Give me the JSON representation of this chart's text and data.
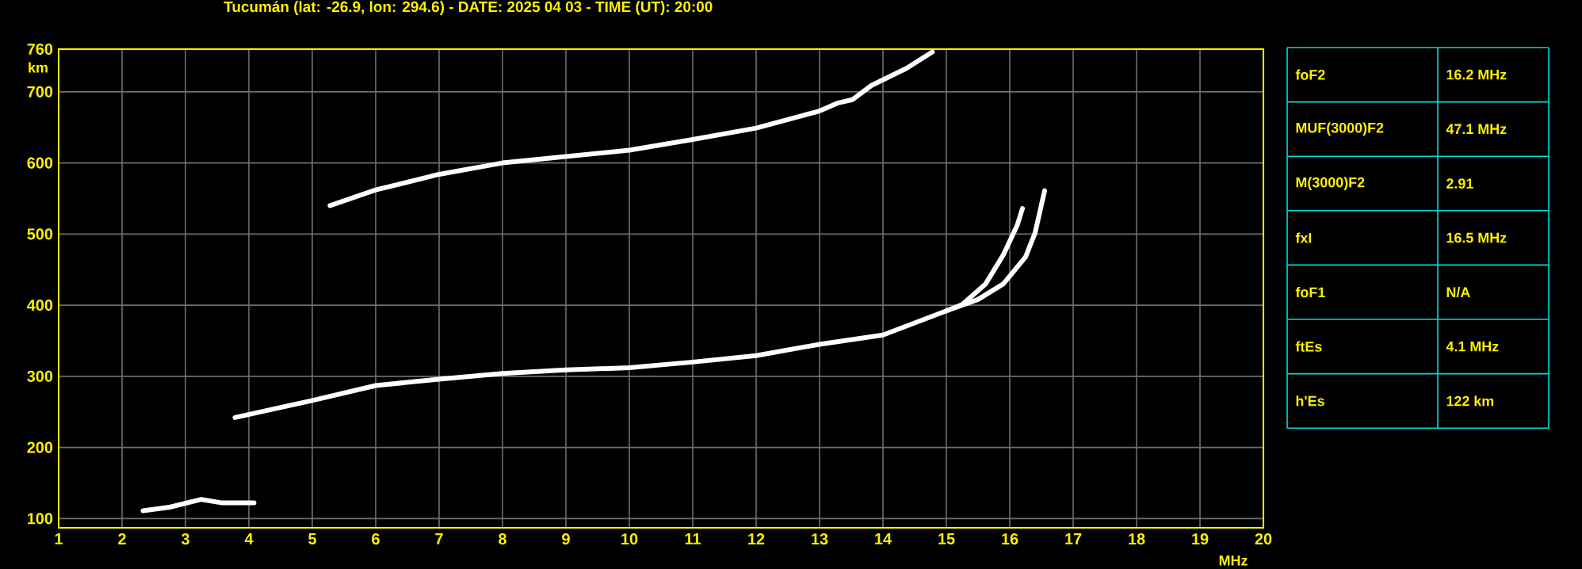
{
  "chart_data": [
    {
      "type": "line",
      "title": "Tucumán (lat: -26.9, lon: 294.6) - DATE: 2025 04 03 - TIME (UT): 20:00",
      "xlabel": "MHz",
      "ylabel": "km",
      "xlim": [
        1,
        20
      ],
      "ylim": [
        87,
        760
      ],
      "xticks": [
        1,
        2,
        3,
        4,
        5,
        6,
        7,
        8,
        9,
        10,
        11,
        12,
        13,
        14,
        15,
        16,
        17,
        18,
        19,
        20
      ],
      "yticks": [
        100,
        200,
        300,
        400,
        500,
        600,
        700,
        760
      ],
      "grid": true,
      "marker": "none",
      "line_style": "solid",
      "series": [
        {
          "color": "#ffffff",
          "x": [
            3.78,
            5.0,
            6.0,
            7.0,
            8.0,
            9.0,
            10.0,
            11.0,
            12.0,
            13.0,
            14.0,
            15.0,
            15.25,
            15.62,
            15.9,
            16.12,
            16.2
          ],
          "values": [
            242,
            266,
            287,
            296,
            304,
            309,
            312,
            320,
            329,
            345,
            358,
            392,
            401,
            430,
            471,
            513,
            536
          ]
        },
        {
          "color": "#ffffff",
          "x": [
            15.0,
            15.5,
            15.9,
            16.25,
            16.4,
            16.55
          ],
          "values": [
            392,
            408,
            430,
            468,
            502,
            561
          ]
        },
        {
          "color": "#ffffff",
          "x": [
            5.28,
            6.0,
            7.0,
            8.0,
            9.0,
            10.0,
            11.0,
            12.0,
            13.0,
            13.28,
            13.52,
            13.82,
            14.37,
            14.78
          ],
          "values": [
            540,
            562,
            584,
            600,
            609,
            618,
            633,
            649,
            673,
            684,
            689,
            709,
            733,
            756
          ]
        },
        {
          "color": "#ffffff",
          "x": [
            2.33,
            2.75,
            3.25,
            3.58,
            4.08
          ],
          "values": [
            111,
            116,
            127,
            122,
            122
          ]
        }
      ]
    },
    {
      "type": "other",
      "annotations": [
        "foF2",
        "16.2 MHz",
        "MUF(3000)F2",
        "47.1 MHz",
        "M(3000)F2",
        "2.91",
        "fxI",
        "16.5 MHz",
        "foF1",
        "N/A",
        "ftEs",
        "4.1 MHz",
        "h'Es",
        "122 km"
      ]
    }
  ]
}
